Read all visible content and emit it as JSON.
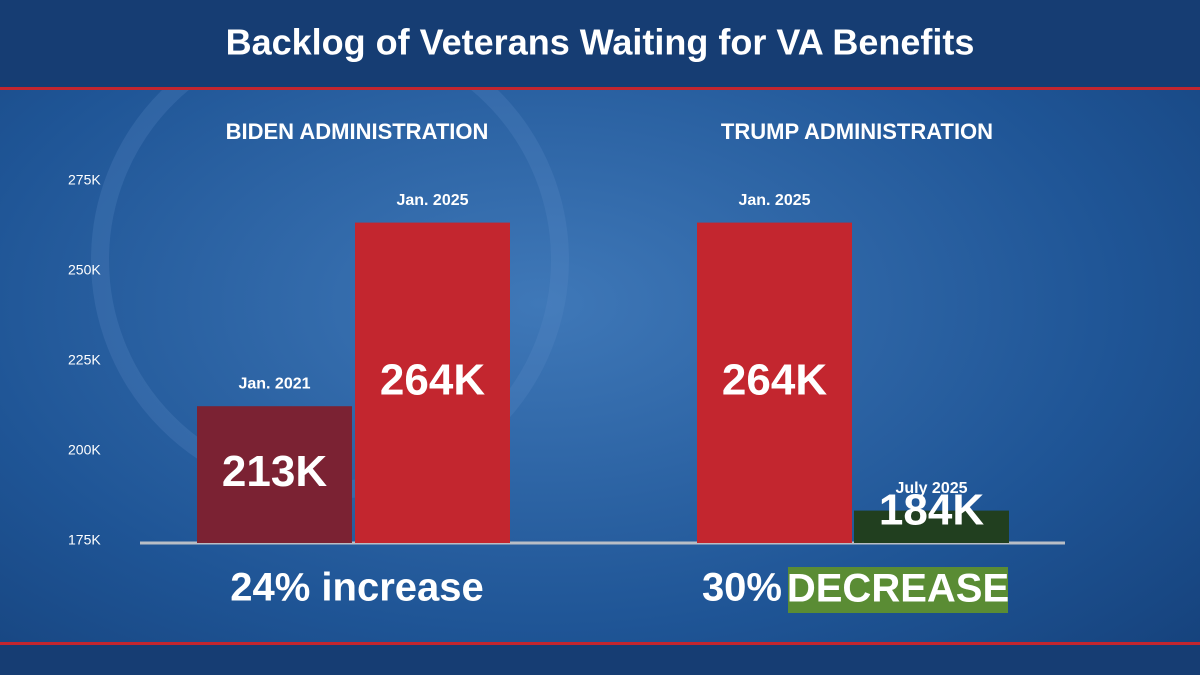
{
  "title": "Backlog of Veterans Waiting for VA Benefits",
  "chart_data": [
    {
      "type": "bar",
      "title": "BIDEN ADMINISTRATION",
      "categories": [
        "Jan. 2021",
        "Jan. 2025"
      ],
      "values": [
        213000,
        264000
      ],
      "value_labels": [
        "213K",
        "264K"
      ],
      "colors": [
        "#7b2233",
        "#c3262f"
      ],
      "ylim": [
        175000,
        275000
      ],
      "yticks": [
        {
          "value": 175000,
          "label": "175K"
        },
        {
          "value": 200000,
          "label": "200K"
        },
        {
          "value": 225000,
          "label": "225K"
        },
        {
          "value": 250000,
          "label": "250K"
        },
        {
          "value": 275000,
          "label": "275K"
        }
      ],
      "annotation": "24% increase"
    },
    {
      "type": "bar",
      "title": "TRUMP ADMINISTRATION",
      "categories": [
        "Jan. 2025",
        "July 2025"
      ],
      "values": [
        264000,
        184000
      ],
      "value_labels": [
        "264K",
        "184K"
      ],
      "colors": [
        "#c3262f",
        "#213f1f"
      ],
      "ylim": [
        175000,
        275000
      ],
      "annotation": "30%",
      "annotation_highlight": "DECREASE",
      "highlight_color": "#5a8c34"
    }
  ]
}
